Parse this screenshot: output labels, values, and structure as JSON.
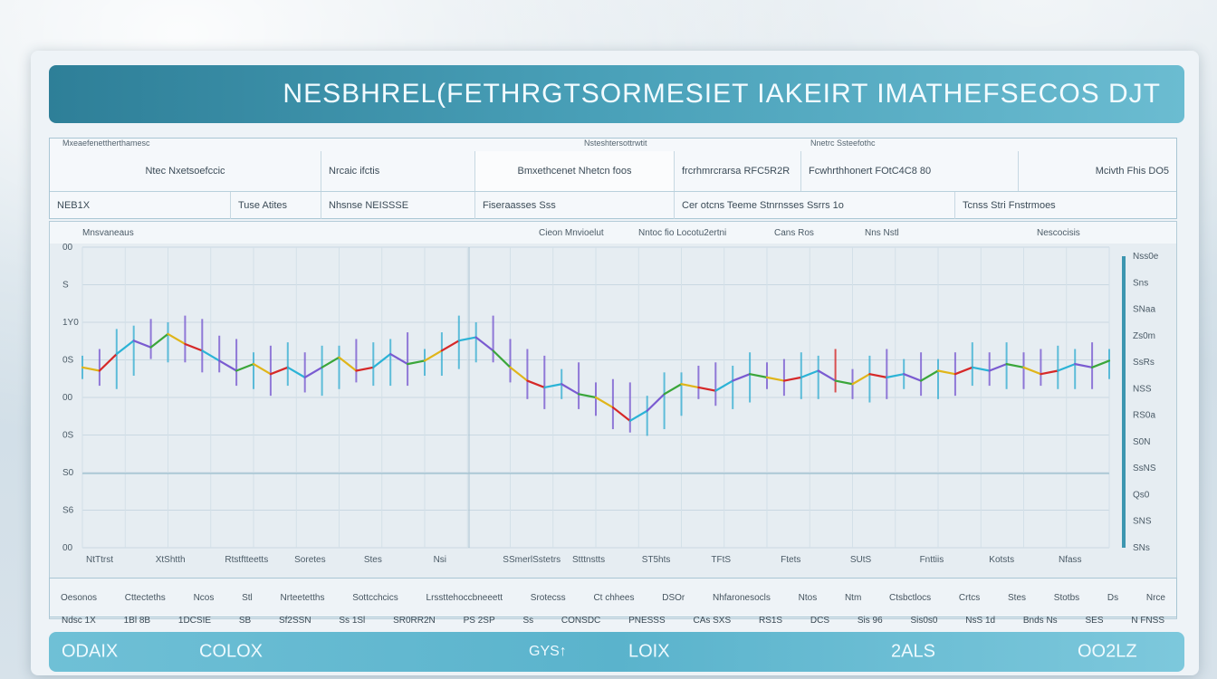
{
  "title": "NESBHREL(FETHRGTSORMESIET IAKEIRT IMATHEFSECOS DJT",
  "colors": {
    "accent": "#3d96b0",
    "bullish": "#2bb3d6",
    "bearish": "#d62828",
    "bottom_bar": "#5ab3cc"
  },
  "toolbar": {
    "row1": [
      {
        "label": "Ntec Nxetsoefccic",
        "header": "Mxeaefenettherthamesc"
      },
      {
        "label": "Nrcaic ifctis"
      },
      {
        "label": "Bmxethcenet Nhetcn foos",
        "header": "Nsteshtersottrwtit"
      },
      {
        "label": "frcrhmrcrarsa RFC5R2R",
        "header": ""
      },
      {
        "label": "Fcwhrthhonert FOtC4C8 80",
        "header": "Nnetrc Ssteefothc"
      },
      {
        "label": "Mcivth Fhis DO5"
      }
    ],
    "row2": [
      {
        "label": "NEB1X"
      },
      {
        "label": "Tuse Atites"
      },
      {
        "label": "Nhsnse NEISSSE"
      },
      {
        "label": "Fiseraasses Sss"
      },
      {
        "label": "Cer otcns Teeme Stnrnsses Ssrrs 1o"
      },
      {
        "label": "Tcnss Stri Fnstrmoes"
      }
    ]
  },
  "chart_header": {
    "left": "Mnsvaneaus",
    "items": [
      "Cieon Mnvioelut",
      "Nntoc fio Locotu2ertni",
      "Cans Ros",
      "Nns Nstl"
    ],
    "right": "Nescocisis"
  },
  "chart_data": {
    "type": "line",
    "x": [
      0,
      1,
      2,
      3,
      4,
      5,
      6,
      7,
      8,
      9,
      10,
      11,
      12,
      13,
      14,
      15,
      16,
      17,
      18,
      19,
      20,
      21,
      22,
      23,
      24,
      25,
      26,
      27,
      28,
      29,
      30,
      31,
      32,
      33,
      34,
      35,
      36,
      37,
      38,
      39,
      40,
      41,
      42,
      43,
      44,
      45,
      46,
      47,
      48,
      49,
      50,
      51,
      52,
      53,
      54,
      55,
      56,
      57,
      58,
      59,
      60
    ],
    "series": [
      {
        "values": [
          5.4,
          5.3,
          5.8,
          6.2,
          6.0,
          6.4,
          6.1,
          5.9,
          5.6,
          5.3,
          5.5,
          5.2,
          5.4,
          5.1,
          5.4,
          5.7,
          5.3,
          5.4,
          5.8,
          5.5,
          5.6,
          5.9,
          6.2,
          6.3,
          5.9,
          5.4,
          5.0,
          4.8,
          4.9,
          4.6,
          4.5,
          4.2,
          3.8,
          4.1,
          4.6,
          4.9,
          4.8,
          4.7,
          5.0,
          5.2,
          5.1,
          5.0,
          5.1,
          5.3,
          5.0,
          4.9,
          5.2,
          5.1,
          5.2,
          5.0,
          5.3,
          5.2,
          5.4,
          5.3,
          5.5,
          5.4,
          5.2,
          5.3,
          5.5,
          5.4,
          5.6
        ]
      }
    ],
    "ylim": [
      0,
      9
    ],
    "y_ticks": [
      "00",
      "S",
      "1Y0",
      "0S",
      "00",
      "0S",
      "S0",
      "S6",
      "00"
    ],
    "right_ticks": [
      "Nss0e",
      "Sns",
      "SNaa",
      "Zs0m",
      "SsRs",
      "NSS",
      "RS0a",
      "S0N",
      "SsNS",
      "Qs0",
      "SNS",
      "SNs"
    ],
    "x_ticks": [
      "NtTtrst",
      "XtShtth",
      "Rtstftteetts",
      "Soretes",
      "Stes",
      "Nsi",
      "SSmerlSstetrs",
      "Stttnstts",
      "ST5hts",
      "TFtS",
      "Ftets",
      "SUtS",
      "Fnttiis",
      "Kotsts",
      "Nfass"
    ],
    "grid": true
  },
  "info_row": [
    "Oesonos",
    "Cttecteths",
    "Ncos",
    "Stl",
    "Nrteetetths",
    "Sottcchcics",
    "Lrssttehoccbneeett",
    "Srotecss",
    "Ct chhees",
    "DSOr",
    "Nhfaronesocls",
    "Ntos",
    "Ntm",
    "Ctsbctlocs",
    "Crtcs",
    "Stes",
    "Stotbs",
    "Ds",
    "Nrce"
  ],
  "stat_row": [
    "Ndsc 1X",
    "1Bl 8B",
    "1DCSIE",
    "SB",
    "Sf2SSN",
    "Ss 1Sl",
    "SR0RR2N",
    "PS 2SP",
    "Ss",
    "CONSDC",
    "PNESSS",
    "CAs SXS",
    "RS1S",
    "DCS",
    "Sis 96",
    "Sis0s0",
    "NsS 1d",
    "Bnds Ns",
    "SES",
    "N FNSS"
  ],
  "bottom_bar": {
    "items": [
      {
        "label": "ODAIX"
      },
      {
        "label": "COLOX"
      },
      {
        "label": "GYS↑"
      },
      {
        "label": "LOIX"
      },
      {
        "label": "2ALS"
      },
      {
        "label": "OO2LZ"
      }
    ]
  }
}
